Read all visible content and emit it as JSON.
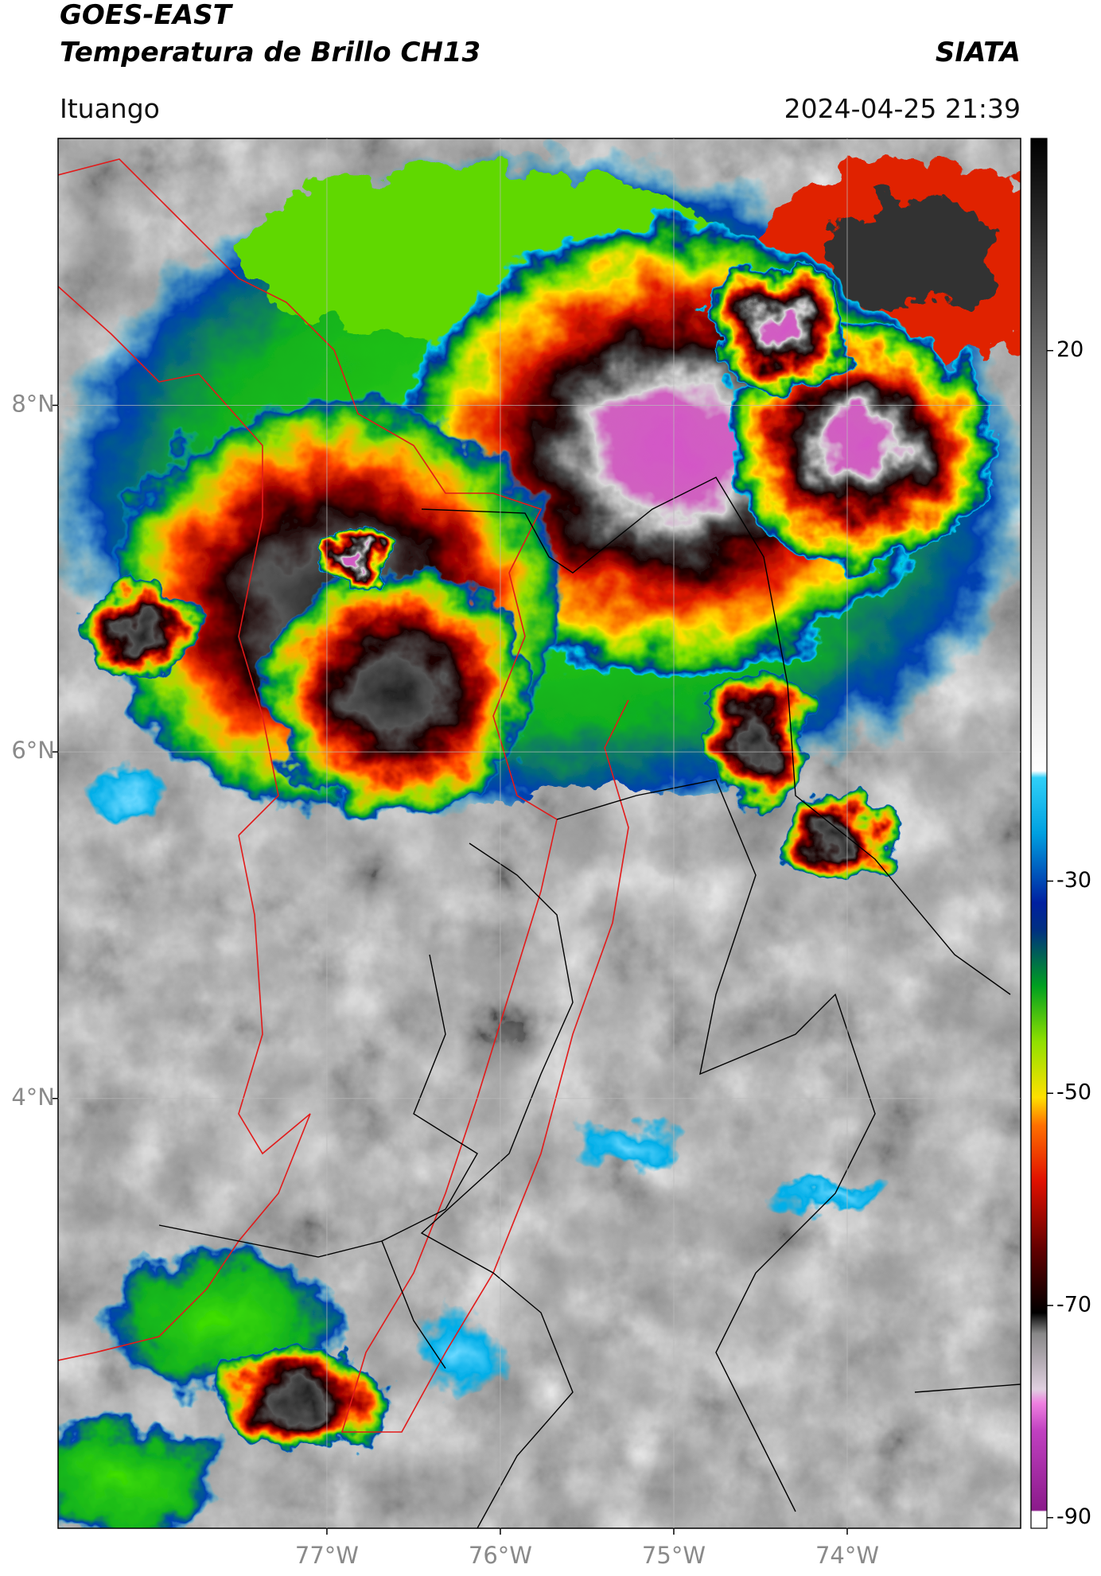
{
  "header": {
    "title": "GOES-EAST",
    "subtitle": "Temperatura de Brillo CH13",
    "brand": "SIATA",
    "location": "Ituango",
    "datetime": "2024-04-25 21:39"
  },
  "map": {
    "xlim": [
      -78.55,
      -73.0
    ],
    "ylim": [
      1.52,
      9.54
    ],
    "xticks": [
      {
        "value": -77,
        "label": "77°W"
      },
      {
        "value": -76,
        "label": "76°W"
      },
      {
        "value": -75,
        "label": "75°W"
      },
      {
        "value": -74,
        "label": "74°W"
      }
    ],
    "yticks": [
      {
        "value": 8,
        "label": "8°N"
      },
      {
        "value": 6,
        "label": "6°N"
      },
      {
        "value": 4,
        "label": "4°N"
      }
    ],
    "grid": true,
    "colorbar": {
      "lim": [
        -91,
        40
      ],
      "ticks": [
        20,
        -30,
        -50,
        -70,
        -90
      ]
    }
  }
}
